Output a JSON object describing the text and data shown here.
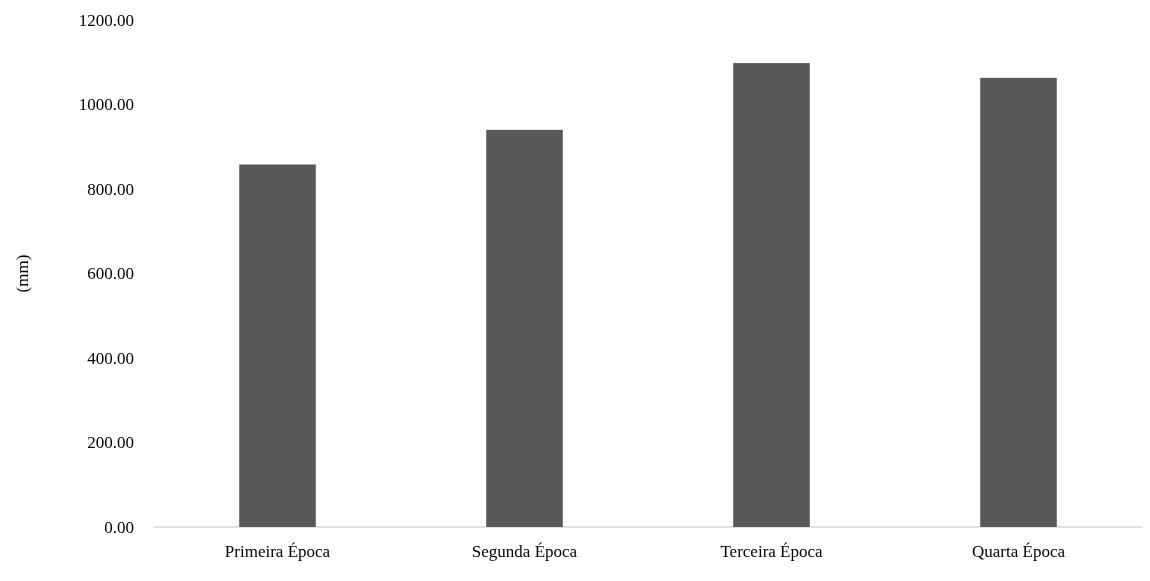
{
  "chart_data": {
    "type": "bar",
    "ylabel": "(mm)",
    "categories": [
      "Primeira Época",
      "Segunda Época",
      "Terceira Época",
      "Quarta Época"
    ],
    "values": [
      858,
      940,
      1098,
      1063
    ],
    "color": "#595959",
    "ylim": [
      0,
      1200
    ],
    "yticks": [
      {
        "value": 0,
        "label": "0.00"
      },
      {
        "value": 200,
        "label": "200.00"
      },
      {
        "value": 400,
        "label": "400.00"
      },
      {
        "value": 600,
        "label": "600.00"
      },
      {
        "value": 800,
        "label": "800.00"
      },
      {
        "value": 1000,
        "label": "1000.00"
      },
      {
        "value": 1200,
        "label": "1200.00"
      }
    ],
    "grid": false
  }
}
